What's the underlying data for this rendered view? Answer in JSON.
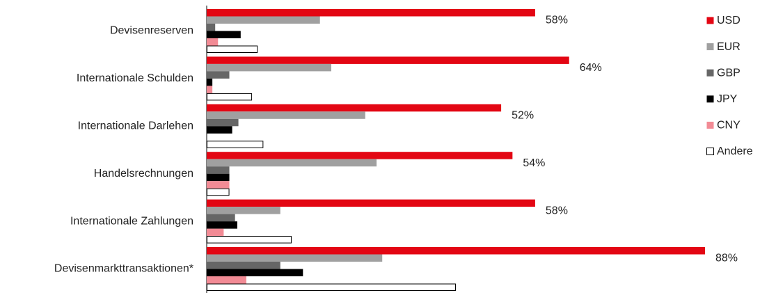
{
  "chart_data": {
    "type": "hbar",
    "categories": [
      "Devisenreserven",
      "Internationale Schulden",
      "Internationale Darlehen",
      "Handelsrechnungen",
      "Internationale Zahlungen",
      "Devisenmarkttransaktionen*"
    ],
    "series": [
      {
        "name": "USD",
        "color": "#e30613",
        "values": [
          58,
          64,
          52,
          54,
          58,
          88
        ],
        "value_labels": [
          "58%",
          "64%",
          "52%",
          "54%",
          "58%",
          "88%"
        ]
      },
      {
        "name": "EUR",
        "color": "#a0a0a0",
        "values": [
          20,
          22,
          28,
          30,
          13,
          31
        ]
      },
      {
        "name": "GBP",
        "color": "#666666",
        "values": [
          1.5,
          4,
          5.6,
          4,
          5,
          13
        ]
      },
      {
        "name": "JPY",
        "color": "#000000",
        "values": [
          6,
          1,
          4.5,
          4,
          5.4,
          17
        ]
      },
      {
        "name": "CNY",
        "color": "#f28b95",
        "values": [
          2,
          1,
          0,
          4,
          3,
          7
        ]
      },
      {
        "name": "Andere",
        "color": "#ffffff",
        "values": [
          9,
          8,
          10,
          4,
          15,
          44
        ]
      }
    ]
  }
}
